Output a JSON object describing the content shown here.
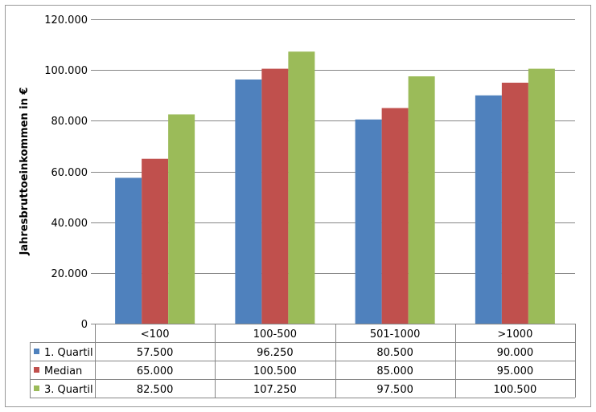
{
  "chart_data": {
    "type": "bar",
    "ylabel": "Jahresbruttoeinkommen in €",
    "ylim": [
      0,
      120000
    ],
    "yticks": [
      {
        "value": 0,
        "label": "0"
      },
      {
        "value": 20000,
        "label": "20.000"
      },
      {
        "value": 40000,
        "label": "40.000"
      },
      {
        "value": 60000,
        "label": "60.000"
      },
      {
        "value": 80000,
        "label": "80.000"
      },
      {
        "value": 100000,
        "label": "100.000"
      },
      {
        "value": 120000,
        "label": "120.000"
      }
    ],
    "grid": true,
    "legend": "data-table-below",
    "categories": [
      "<100",
      "100-500",
      "501-1000",
      ">1000"
    ],
    "series": [
      {
        "name": "1. Quartil",
        "color": "#4f81bd",
        "values": [
          57500,
          96250,
          80500,
          90000
        ],
        "labels": [
          "57.500",
          "96.250",
          "80.500",
          "90.000"
        ]
      },
      {
        "name": "Median",
        "color": "#c0504d",
        "values": [
          65000,
          100500,
          85000,
          95000
        ],
        "labels": [
          "65.000",
          "100.500",
          "85.000",
          "95.000"
        ]
      },
      {
        "name": "3. Quartil",
        "color": "#9bbb59",
        "values": [
          82500,
          107250,
          97500,
          100500
        ],
        "labels": [
          "82.500",
          "107.250",
          "97.500",
          "100.500"
        ]
      }
    ]
  }
}
